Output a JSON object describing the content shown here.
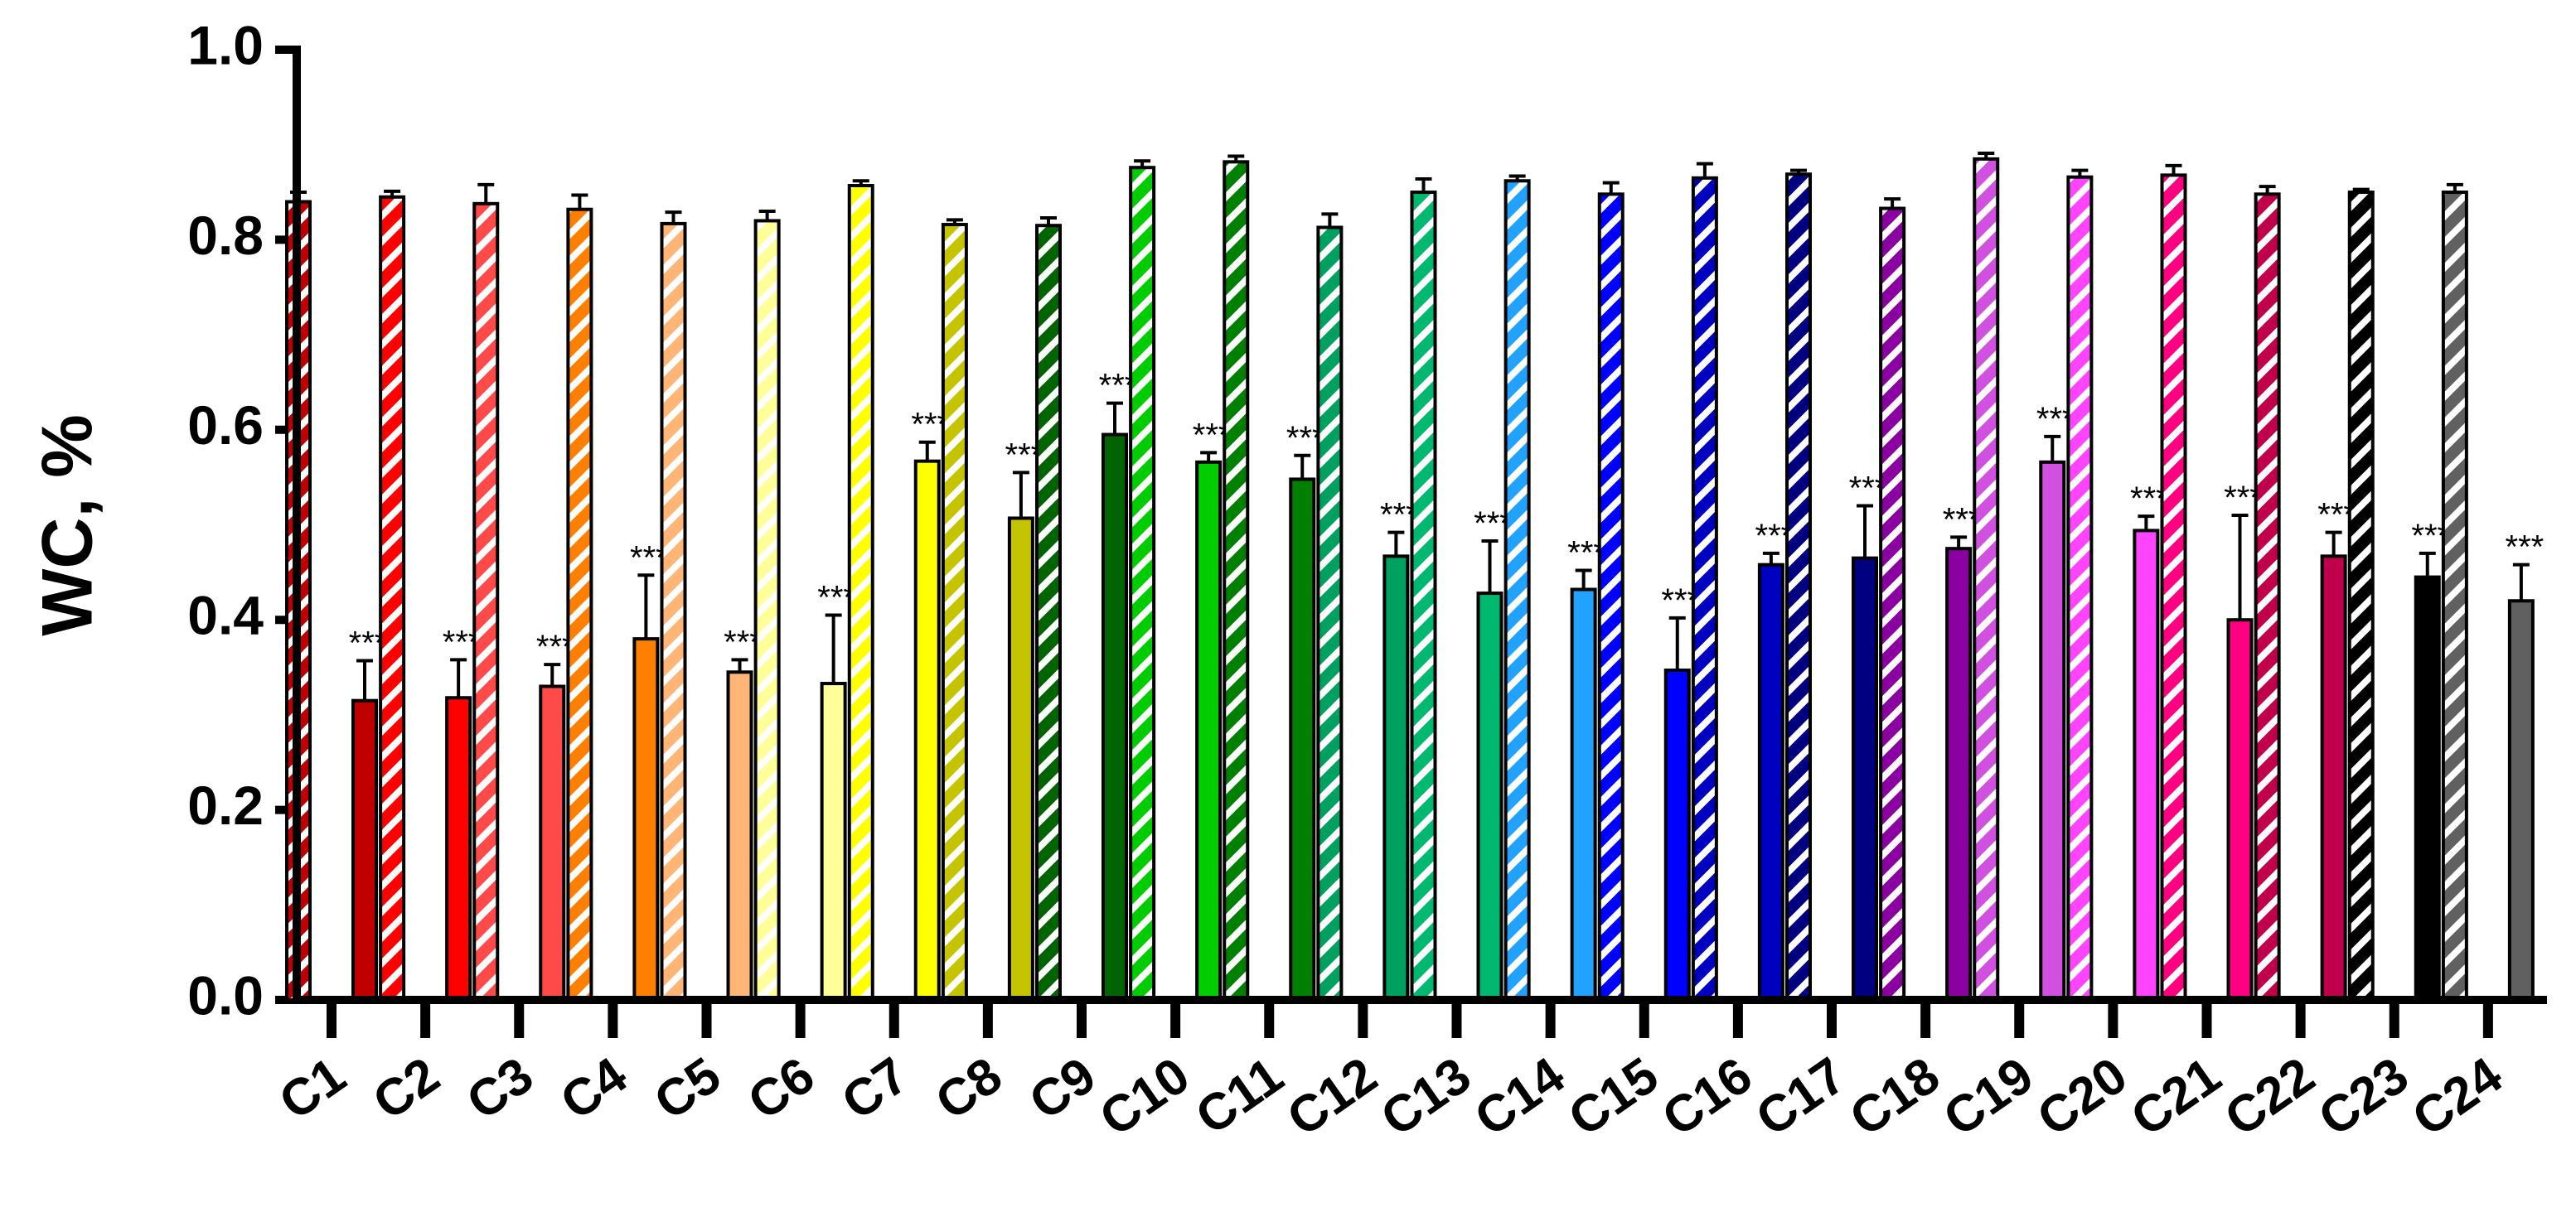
{
  "chart_data": {
    "type": "bar",
    "ylabel": "WC, %",
    "categories": [
      "C1",
      "C2",
      "C3",
      "C4",
      "C5",
      "C6",
      "C7",
      "C8",
      "C9",
      "C10",
      "C11",
      "C12",
      "C13",
      "C14",
      "C15",
      "C16",
      "C17",
      "C18",
      "C19",
      "C20",
      "C21",
      "C22",
      "C23",
      "C24"
    ],
    "colors": [
      "#c00000",
      "#ff0000",
      "#ff4a4a",
      "#ff8000",
      "#ffb575",
      "#ffff99",
      "#ffff00",
      "#c4c400",
      "#006400",
      "#00cc00",
      "#008000",
      "#00a060",
      "#00b870",
      "#22a2ff",
      "#0000ff",
      "#0000c0",
      "#000080",
      "#8a00a0",
      "#d050e0",
      "#ff44ff",
      "#ff0080",
      "#c0004a",
      "#000000",
      "#606060"
    ],
    "series": [
      {
        "style": "hatched",
        "values": [
          0.84,
          0.845,
          0.838,
          0.832,
          0.817,
          0.82,
          0.857,
          0.816,
          0.815,
          0.876,
          0.882,
          0.813,
          0.85,
          0.862,
          0.848,
          0.865,
          0.869,
          0.833,
          0.885,
          0.866,
          0.868,
          0.848,
          0.85,
          0.85
        ],
        "errors": [
          0.01,
          0.006,
          0.02,
          0.015,
          0.012,
          0.01,
          0.005,
          0.005,
          0.008,
          0.007,
          0.006,
          0.014,
          0.014,
          0.005,
          0.012,
          0.015,
          0.004,
          0.01,
          0.006,
          0.007,
          0.01,
          0.008,
          0.003,
          0.008
        ]
      },
      {
        "style": "solid",
        "values": [
          0.315,
          0.318,
          0.33,
          0.38,
          0.345,
          0.333,
          0.567,
          0.507,
          0.595,
          0.566,
          0.548,
          0.467,
          0.428,
          0.432,
          0.347,
          0.458,
          0.465,
          0.475,
          0.566,
          0.494,
          0.4,
          0.467,
          0.445,
          0.42
        ],
        "errors": [
          0.042,
          0.04,
          0.023,
          0.067,
          0.013,
          0.072,
          0.02,
          0.048,
          0.033,
          0.01,
          0.025,
          0.025,
          0.055,
          0.02,
          0.055,
          0.012,
          0.055,
          0.012,
          0.027,
          0.015,
          0.11,
          0.025,
          0.025,
          0.038
        ],
        "annotations": [
          "***",
          "***",
          "***",
          "***",
          "***",
          "***",
          "***",
          "***",
          "***",
          "***",
          "***",
          "***",
          "***",
          "***",
          "***",
          "***",
          "***",
          "***",
          "***",
          "***",
          "***",
          "***",
          "***",
          "***"
        ]
      }
    ],
    "ylim": [
      0,
      1
    ],
    "yticks": [
      {
        "value": 0,
        "label": "0.0"
      },
      0.2,
      0.4,
      0.6,
      0.8,
      {
        "value": 1,
        "label": "1.0"
      }
    ]
  }
}
